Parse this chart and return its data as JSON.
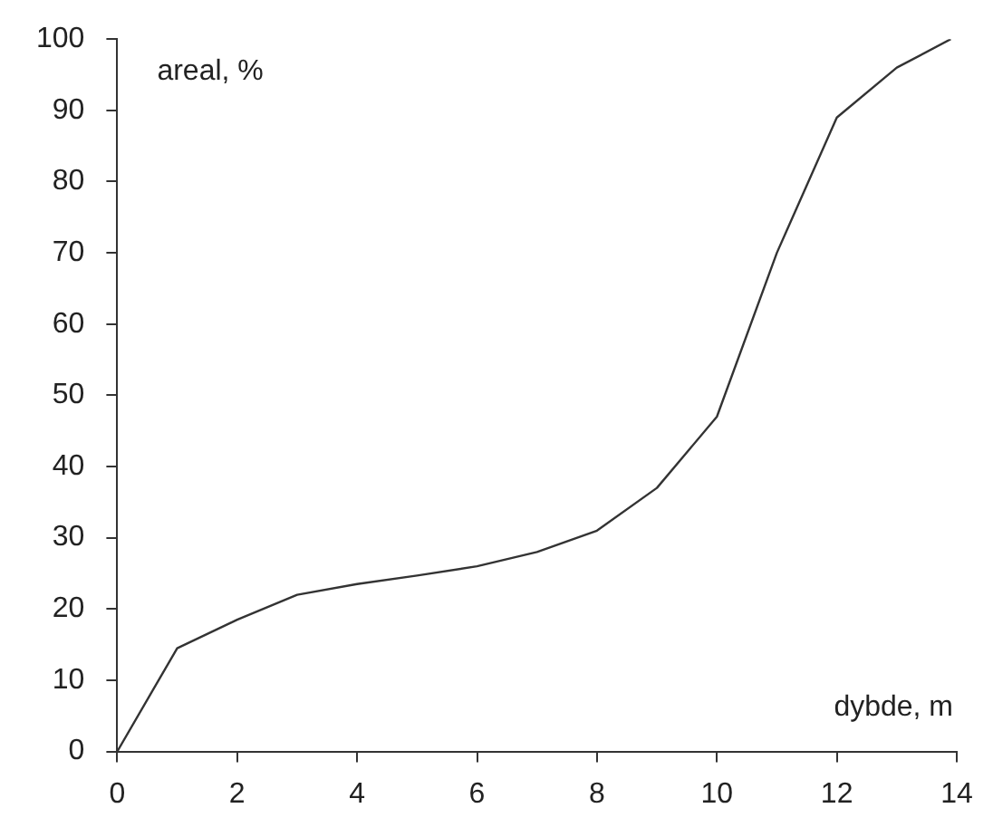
{
  "chart_data": {
    "type": "line",
    "xlabel": "dybde, m",
    "ylabel": "areal, %",
    "x": [
      0,
      1,
      2,
      3,
      4,
      5,
      6,
      7,
      8,
      9,
      10,
      11,
      12,
      13,
      13.9
    ],
    "series": [
      {
        "color": "#333333",
        "values": [
          0,
          14.5,
          18.5,
          22,
          23.5,
          24.7,
          26,
          28,
          31,
          37,
          47,
          70,
          89,
          96,
          100
        ]
      }
    ],
    "xlim": [
      0,
      14
    ],
    "xticks": [
      0,
      2,
      4,
      6,
      8,
      10,
      12,
      14
    ],
    "ylim": [
      0,
      100
    ],
    "yticks": [
      0,
      10,
      20,
      30,
      40,
      50,
      60,
      70,
      80,
      90,
      100
    ],
    "grid": false,
    "legend": false,
    "marker": "none",
    "line_style": "solid"
  }
}
